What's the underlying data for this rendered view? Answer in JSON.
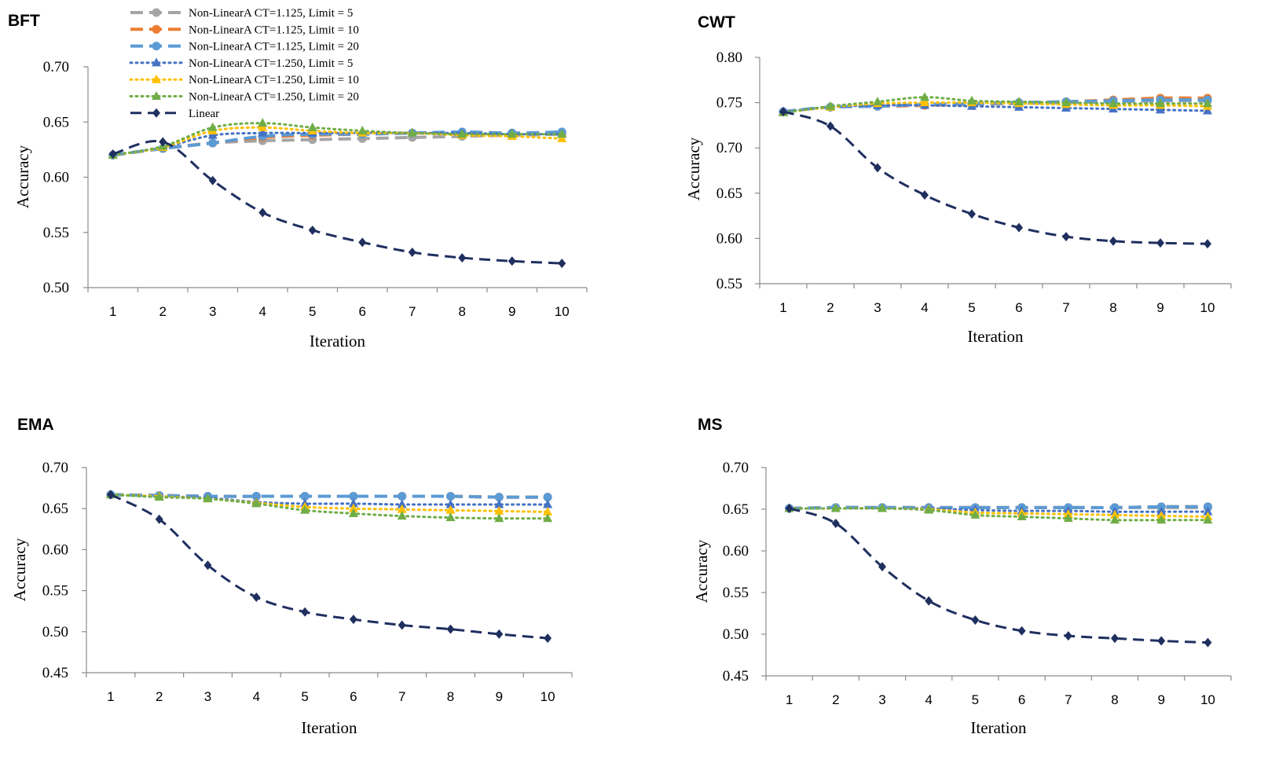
{
  "series_styles": [
    {
      "color": "#a5a5a5",
      "dash": "16 8",
      "width": 4,
      "marker": "circle"
    },
    {
      "color": "#ed7d31",
      "dash": "16 8",
      "width": 4,
      "marker": "circle"
    },
    {
      "color": "#5b9bd5",
      "dash": "16 8",
      "width": 4,
      "marker": "circle"
    },
    {
      "color": "#4472c4",
      "dash": "2 5",
      "width": 3,
      "marker": "triangle"
    },
    {
      "color": "#ffc000",
      "dash": "2 5",
      "width": 3,
      "marker": "triangle"
    },
    {
      "color": "#70ad47",
      "dash": "2 5",
      "width": 3,
      "marker": "triangle"
    },
    {
      "color": "#1f2f5f",
      "dash": "14 8",
      "width": 3,
      "marker": "diamond"
    }
  ],
  "chart_data": [
    {
      "type": "line",
      "title": "BFT",
      "xlabel": "Iteration",
      "ylabel": "Accuracy",
      "ylim": [
        0.5,
        0.7
      ],
      "yticks": [
        "0.50",
        "0.55",
        "0.60",
        "0.65",
        "0.70"
      ],
      "x": [
        1,
        2,
        3,
        4,
        5,
        6,
        7,
        8,
        9,
        10
      ],
      "legend": "top-left",
      "series": [
        {
          "name": "Non-LinearA CT=1.125, Limit = 5",
          "values": [
            0.62,
            0.626,
            0.631,
            0.633,
            0.634,
            0.635,
            0.636,
            0.637,
            0.638,
            0.639
          ]
        },
        {
          "name": "Non-LinearA CT=1.125, Limit = 10",
          "values": [
            0.62,
            0.626,
            0.631,
            0.636,
            0.638,
            0.639,
            0.64,
            0.64,
            0.64,
            0.64
          ]
        },
        {
          "name": "Non-LinearA CT=1.125, Limit = 20",
          "values": [
            0.62,
            0.626,
            0.631,
            0.637,
            0.639,
            0.639,
            0.64,
            0.641,
            0.64,
            0.641
          ]
        },
        {
          "name": "Non-LinearA CT=1.250, Limit = 5",
          "values": [
            0.62,
            0.627,
            0.638,
            0.64,
            0.64,
            0.64,
            0.64,
            0.64,
            0.639,
            0.639
          ]
        },
        {
          "name": "Non-LinearA CT=1.250, Limit = 10",
          "values": [
            0.62,
            0.627,
            0.642,
            0.645,
            0.642,
            0.64,
            0.64,
            0.638,
            0.637,
            0.635
          ]
        },
        {
          "name": "Non-LinearA CT=1.250, Limit = 20",
          "values": [
            0.62,
            0.628,
            0.645,
            0.649,
            0.645,
            0.642,
            0.64,
            0.639,
            0.639,
            0.639
          ]
        },
        {
          "name": "Linear",
          "values": [
            0.621,
            0.632,
            0.597,
            0.568,
            0.552,
            0.541,
            0.532,
            0.527,
            0.524,
            0.522
          ]
        }
      ]
    },
    {
      "type": "line",
      "title": "CWT",
      "xlabel": "Iteration",
      "ylabel": "Accuracy",
      "ylim": [
        0.55,
        0.8
      ],
      "yticks": [
        "0.55",
        "0.60",
        "0.65",
        "0.70",
        "0.75",
        "0.80"
      ],
      "x": [
        1,
        2,
        3,
        4,
        5,
        6,
        7,
        8,
        9,
        10
      ],
      "series": [
        {
          "name": "Non-LinearA CT=1.125, Limit = 5",
          "values": [
            0.74,
            0.745,
            0.746,
            0.747,
            0.748,
            0.749,
            0.75,
            0.751,
            0.752,
            0.752
          ]
        },
        {
          "name": "Non-LinearA CT=1.125, Limit = 10",
          "values": [
            0.74,
            0.745,
            0.746,
            0.747,
            0.749,
            0.75,
            0.751,
            0.753,
            0.755,
            0.755
          ]
        },
        {
          "name": "Non-LinearA CT=1.125, Limit = 20",
          "values": [
            0.74,
            0.745,
            0.746,
            0.748,
            0.749,
            0.75,
            0.751,
            0.752,
            0.753,
            0.753
          ]
        },
        {
          "name": "Non-LinearA CT=1.250, Limit = 5",
          "values": [
            0.74,
            0.745,
            0.747,
            0.747,
            0.746,
            0.745,
            0.744,
            0.743,
            0.742,
            0.741
          ]
        },
        {
          "name": "Non-LinearA CT=1.250, Limit = 10",
          "values": [
            0.739,
            0.745,
            0.749,
            0.75,
            0.75,
            0.749,
            0.748,
            0.747,
            0.747,
            0.746
          ]
        },
        {
          "name": "Non-LinearA CT=1.250, Limit = 20",
          "values": [
            0.739,
            0.746,
            0.751,
            0.756,
            0.752,
            0.751,
            0.75,
            0.749,
            0.749,
            0.749
          ]
        },
        {
          "name": "Linear",
          "values": [
            0.74,
            0.724,
            0.678,
            0.648,
            0.627,
            0.612,
            0.602,
            0.597,
            0.595,
            0.594
          ]
        }
      ]
    },
    {
      "type": "line",
      "title": "EMA",
      "xlabel": "Iteration",
      "ylabel": "Accuracy",
      "ylim": [
        0.45,
        0.7
      ],
      "yticks": [
        "0.45",
        "0.50",
        "0.55",
        "0.60",
        "0.65",
        "0.70"
      ],
      "x": [
        1,
        2,
        3,
        4,
        5,
        6,
        7,
        8,
        9,
        10
      ],
      "series": [
        {
          "name": "Non-LinearA CT=1.125, Limit = 5",
          "values": [
            0.667,
            0.666,
            0.665,
            0.665,
            0.665,
            0.665,
            0.665,
            0.665,
            0.664,
            0.664
          ]
        },
        {
          "name": "Non-LinearA CT=1.125, Limit = 10",
          "values": [
            0.667,
            0.666,
            0.665,
            0.665,
            0.665,
            0.665,
            0.665,
            0.665,
            0.664,
            0.664
          ]
        },
        {
          "name": "Non-LinearA CT=1.125, Limit = 20",
          "values": [
            0.667,
            0.666,
            0.665,
            0.665,
            0.665,
            0.665,
            0.665,
            0.665,
            0.664,
            0.664
          ]
        },
        {
          "name": "Non-LinearA CT=1.250, Limit = 5",
          "values": [
            0.667,
            0.665,
            0.663,
            0.658,
            0.656,
            0.656,
            0.655,
            0.655,
            0.655,
            0.655
          ]
        },
        {
          "name": "Non-LinearA CT=1.250, Limit = 10",
          "values": [
            0.667,
            0.665,
            0.662,
            0.657,
            0.652,
            0.65,
            0.649,
            0.648,
            0.647,
            0.646
          ]
        },
        {
          "name": "Non-LinearA CT=1.250, Limit = 20",
          "values": [
            0.667,
            0.664,
            0.662,
            0.656,
            0.648,
            0.644,
            0.641,
            0.639,
            0.638,
            0.638
          ]
        },
        {
          "name": "Linear",
          "values": [
            0.667,
            0.637,
            0.581,
            0.542,
            0.524,
            0.515,
            0.508,
            0.503,
            0.497,
            0.492
          ]
        }
      ]
    },
    {
      "type": "line",
      "title": "MS",
      "xlabel": "Iteration",
      "ylabel": "Accuracy",
      "ylim": [
        0.45,
        0.7
      ],
      "yticks": [
        "0.45",
        "0.50",
        "0.55",
        "0.60",
        "0.65",
        "0.70"
      ],
      "x": [
        1,
        2,
        3,
        4,
        5,
        6,
        7,
        8,
        9,
        10
      ],
      "series": [
        {
          "name": "Non-LinearA CT=1.125, Limit = 5",
          "values": [
            0.651,
            0.652,
            0.652,
            0.652,
            0.652,
            0.652,
            0.652,
            0.652,
            0.652,
            0.652
          ]
        },
        {
          "name": "Non-LinearA CT=1.125, Limit = 10",
          "values": [
            0.651,
            0.652,
            0.652,
            0.652,
            0.652,
            0.652,
            0.652,
            0.652,
            0.653,
            0.653
          ]
        },
        {
          "name": "Non-LinearA CT=1.125, Limit = 20",
          "values": [
            0.651,
            0.652,
            0.652,
            0.652,
            0.652,
            0.652,
            0.652,
            0.652,
            0.653,
            0.653
          ]
        },
        {
          "name": "Non-LinearA CT=1.250, Limit = 5",
          "values": [
            0.651,
            0.651,
            0.651,
            0.651,
            0.649,
            0.648,
            0.648,
            0.647,
            0.647,
            0.647
          ]
        },
        {
          "name": "Non-LinearA CT=1.250, Limit = 10",
          "values": [
            0.651,
            0.651,
            0.651,
            0.65,
            0.646,
            0.645,
            0.644,
            0.643,
            0.642,
            0.641
          ]
        },
        {
          "name": "Non-LinearA CT=1.250, Limit = 20",
          "values": [
            0.651,
            0.651,
            0.651,
            0.649,
            0.643,
            0.641,
            0.639,
            0.637,
            0.637,
            0.637
          ]
        },
        {
          "name": "Linear",
          "values": [
            0.651,
            0.633,
            0.581,
            0.54,
            0.517,
            0.504,
            0.498,
            0.495,
            0.492,
            0.49
          ]
        }
      ]
    }
  ]
}
